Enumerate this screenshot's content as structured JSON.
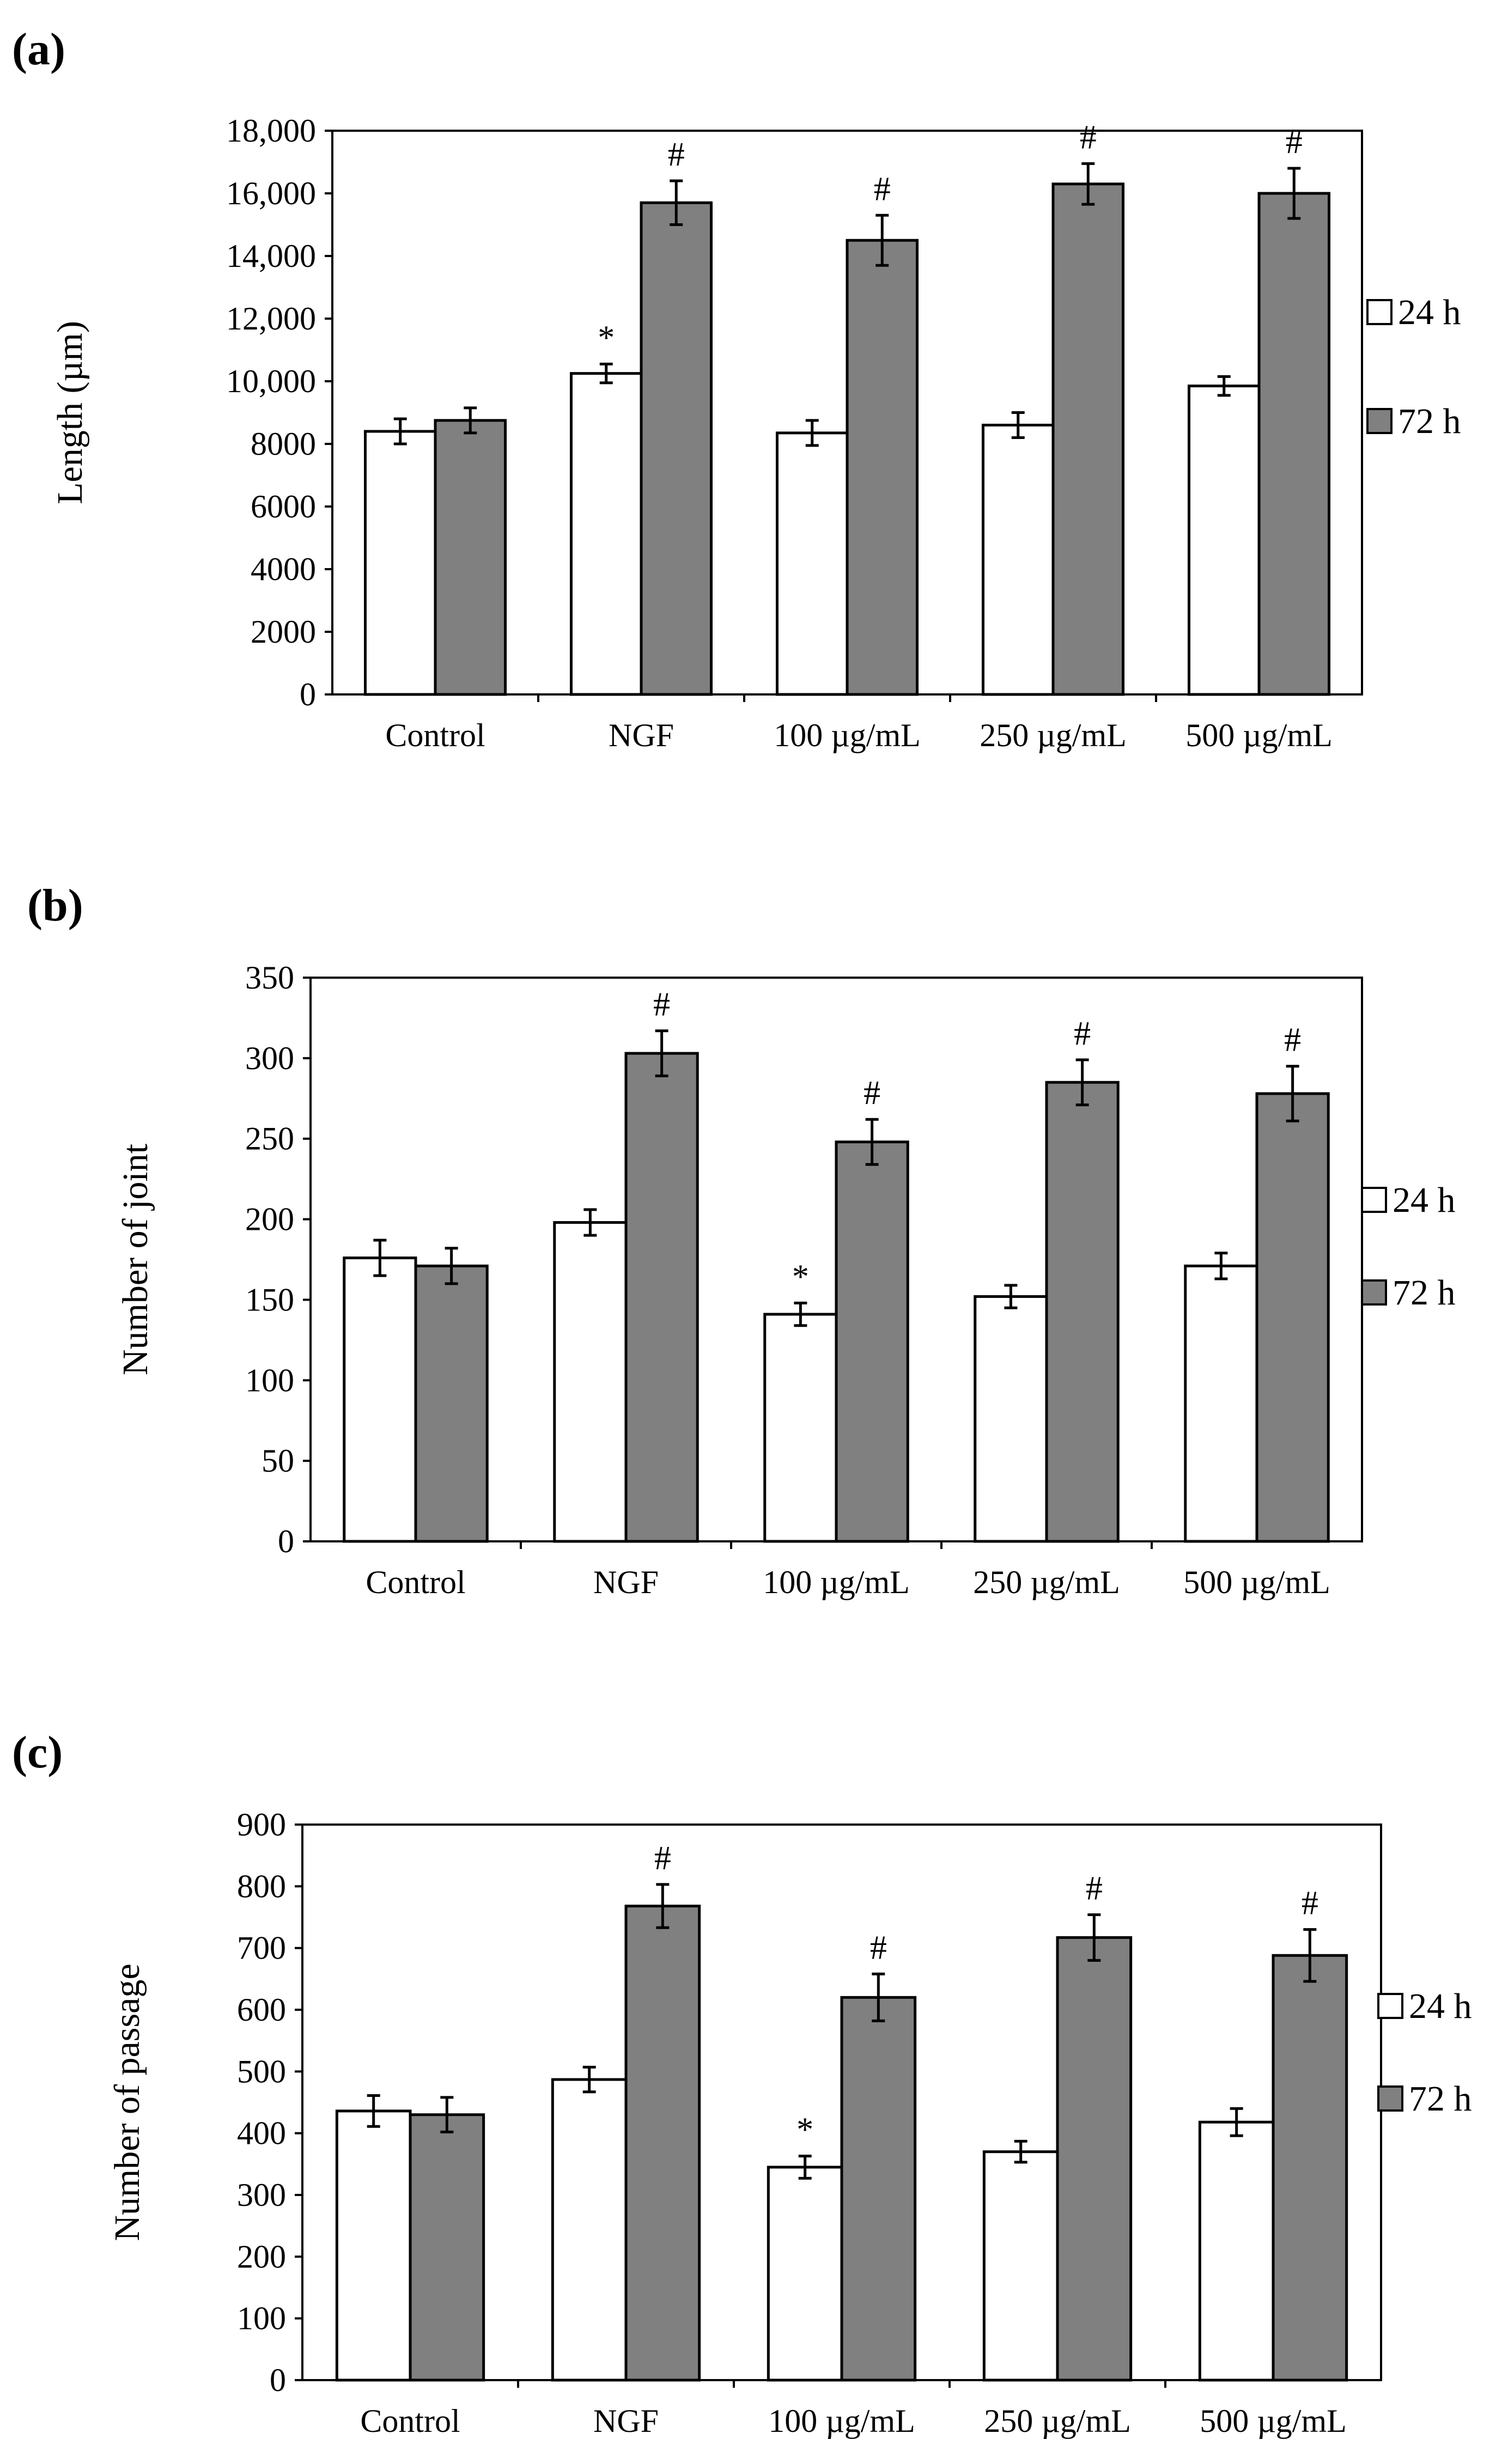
{
  "chart_data": [
    {
      "panel": "(a)",
      "type": "bar",
      "ylabel": "Length (µm)",
      "categories": [
        "Control",
        "NGF",
        "100 µg/mL",
        "250 µg/mL",
        "500 µg/mL"
      ],
      "ylim": [
        0,
        18000
      ],
      "yticks": [
        0,
        2000,
        4000,
        6000,
        8000,
        10000,
        12000,
        14000,
        16000,
        18000
      ],
      "yticklabels": [
        "0",
        "2000",
        "4000",
        "6000",
        "8000",
        "10,000",
        "12,000",
        "14,000",
        "16,000",
        "18,000"
      ],
      "series": [
        {
          "name": "24 h",
          "color": "#ffffff",
          "values": [
            8400,
            10250,
            8350,
            8600,
            9850
          ],
          "errors": [
            400,
            300,
            400,
            400,
            300
          ],
          "marks": [
            "",
            "*",
            "",
            "",
            ""
          ]
        },
        {
          "name": "72 h",
          "color": "#808080",
          "values": [
            8750,
            15700,
            14500,
            16300,
            16000
          ],
          "errors": [
            400,
            700,
            800,
            650,
            800
          ],
          "marks": [
            "",
            "#",
            "#",
            "#",
            "#"
          ]
        }
      ]
    },
    {
      "panel": "(b)",
      "type": "bar",
      "ylabel": "Number of joint",
      "categories": [
        "Control",
        "NGF",
        "100 µg/mL",
        "250 µg/mL",
        "500 µg/mL"
      ],
      "ylim": [
        0,
        350
      ],
      "yticks": [
        0,
        50,
        100,
        150,
        200,
        250,
        300,
        350
      ],
      "yticklabels": [
        "0",
        "50",
        "100",
        "150",
        "200",
        "250",
        "300",
        "350"
      ],
      "series": [
        {
          "name": "24 h",
          "color": "#ffffff",
          "values": [
            176,
            198,
            141,
            152,
            171
          ],
          "errors": [
            11,
            8,
            7,
            7,
            8
          ],
          "marks": [
            "",
            "",
            "*",
            "",
            ""
          ]
        },
        {
          "name": "72 h",
          "color": "#808080",
          "values": [
            171,
            303,
            248,
            285,
            278
          ],
          "errors": [
            11,
            14,
            14,
            14,
            17
          ],
          "marks": [
            "",
            "#",
            "#",
            "#",
            "#"
          ]
        }
      ]
    },
    {
      "panel": "(c)",
      "type": "bar",
      "ylabel": "Number of passage",
      "categories": [
        "Control",
        "NGF",
        "100 µg/mL",
        "250 µg/mL",
        "500 µg/mL"
      ],
      "ylim": [
        0,
        900
      ],
      "yticks": [
        0,
        100,
        200,
        300,
        400,
        500,
        600,
        700,
        800,
        900
      ],
      "yticklabels": [
        "0",
        "100",
        "200",
        "300",
        "400",
        "500",
        "600",
        "700",
        "800",
        "900"
      ],
      "series": [
        {
          "name": "24 h",
          "color": "#ffffff",
          "values": [
            436,
            487,
            345,
            370,
            418
          ],
          "errors": [
            25,
            20,
            18,
            17,
            22
          ],
          "marks": [
            "",
            "",
            "*",
            "",
            ""
          ]
        },
        {
          "name": "72 h",
          "color": "#808080",
          "values": [
            430,
            768,
            620,
            717,
            688
          ],
          "errors": [
            28,
            35,
            38,
            37,
            42
          ],
          "marks": [
            "",
            "#",
            "#",
            "#",
            "#"
          ]
        }
      ]
    }
  ]
}
